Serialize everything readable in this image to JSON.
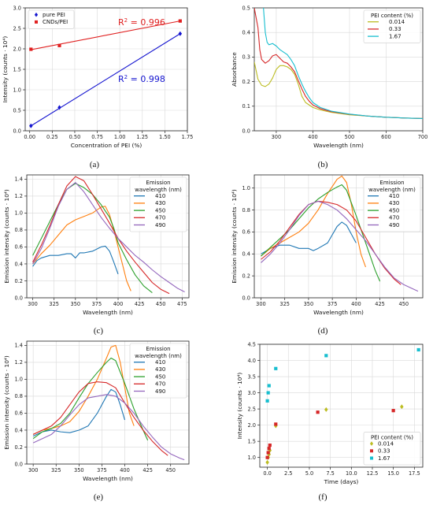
{
  "figure": {
    "panels": [
      {
        "label": "(a)",
        "chart_ref": 0
      },
      {
        "label": "(b)",
        "chart_ref": 1
      },
      {
        "label": "(c)",
        "chart_ref": 2
      },
      {
        "label": "(d)",
        "chart_ref": 3
      },
      {
        "label": "(e)",
        "chart_ref": 4
      },
      {
        "label": "(f)",
        "chart_ref": 5
      }
    ]
  },
  "chart_data": [
    {
      "type": "scatter",
      "xlabel": "Concentration of PEI (%)",
      "ylabel": "Intensity (counts · 10⁴)",
      "xlim": [
        -0.05,
        1.75
      ],
      "ylim": [
        0.0,
        3.0
      ],
      "xticks": [
        "0.00",
        "0.25",
        "0.50",
        "0.75",
        "1.00",
        "1.25",
        "1.50",
        "1.75"
      ],
      "yticks": [
        "0.0",
        "0.5",
        "1.0",
        "1.5",
        "2.0",
        "2.5",
        "3.0"
      ],
      "legend": "top-left",
      "grid": true,
      "series": [
        {
          "name": "pure PEI",
          "marker": "diamond",
          "color": "#1515d0",
          "x": [
            0.014,
            0.33,
            1.67
          ],
          "y": [
            0.12,
            0.57,
            2.37
          ],
          "fit": {
            "x": [
              0.014,
              1.67
            ],
            "y": [
              0.12,
              2.37
            ]
          }
        },
        {
          "name": "CNDs/PEI",
          "marker": "square",
          "color": "#e02020",
          "x": [
            0.014,
            0.33,
            1.67
          ],
          "y": [
            1.99,
            2.08,
            2.68
          ],
          "fit": {
            "x": [
              0.014,
              1.67
            ],
            "y": [
              1.98,
              2.68
            ]
          }
        }
      ],
      "annotations": [
        {
          "text": "R",
          "sup": "2",
          "rest": " = 0.996",
          "color": "#e02020"
        },
        {
          "text": "R",
          "sup": "2",
          "rest": " = 0.998",
          "color": "#1515d0"
        }
      ]
    },
    {
      "type": "line",
      "xlabel": "Wavelength (nm)",
      "ylabel": "Absorbance",
      "xlim": [
        240,
        700
      ],
      "ylim": [
        0.0,
        0.5
      ],
      "xticks": [
        "300",
        "400",
        "500",
        "600",
        "700"
      ],
      "yticks": [
        "0.0",
        "0.1",
        "0.2",
        "0.3",
        "0.4",
        "0.5"
      ],
      "legend_title": "PEI content (%)",
      "legend": "top-right",
      "grid": true,
      "series": [
        {
          "name": "0.014",
          "color": "#bcbd22",
          "x": [
            240,
            250,
            260,
            270,
            280,
            290,
            300,
            310,
            320,
            330,
            340,
            350,
            360,
            370,
            380,
            390,
            400,
            420,
            450,
            500,
            550,
            600,
            650,
            700
          ],
          "y": [
            0.28,
            0.21,
            0.185,
            0.18,
            0.19,
            0.215,
            0.25,
            0.265,
            0.265,
            0.26,
            0.25,
            0.23,
            0.19,
            0.14,
            0.115,
            0.105,
            0.095,
            0.085,
            0.075,
            0.065,
            0.06,
            0.055,
            0.052,
            0.05
          ]
        },
        {
          "name": "0.33",
          "color": "#d62728",
          "x": [
            240,
            250,
            255,
            260,
            270,
            280,
            290,
            300,
            310,
            320,
            330,
            340,
            350,
            360,
            370,
            380,
            390,
            400,
            420,
            450,
            500,
            550,
            600,
            650,
            700
          ],
          "y": [
            0.5,
            0.42,
            0.33,
            0.29,
            0.275,
            0.285,
            0.305,
            0.31,
            0.295,
            0.28,
            0.275,
            0.26,
            0.24,
            0.205,
            0.17,
            0.14,
            0.12,
            0.105,
            0.09,
            0.078,
            0.067,
            0.06,
            0.055,
            0.052,
            0.05
          ]
        },
        {
          "name": "1.67",
          "color": "#17becf",
          "x": [
            265,
            270,
            275,
            280,
            290,
            300,
            310,
            320,
            330,
            340,
            350,
            360,
            370,
            380,
            390,
            400,
            420,
            450,
            500,
            550,
            600,
            650,
            700
          ],
          "y": [
            0.5,
            0.4,
            0.36,
            0.35,
            0.355,
            0.345,
            0.33,
            0.32,
            0.31,
            0.29,
            0.265,
            0.225,
            0.19,
            0.16,
            0.135,
            0.115,
            0.095,
            0.08,
            0.068,
            0.06,
            0.055,
            0.052,
            0.05
          ]
        }
      ]
    },
    {
      "type": "line",
      "xlabel": "Wavelength (nm)",
      "ylabel": "Emission intensity (counts · 10⁴)",
      "xlim": [
        293,
        483
      ],
      "ylim": [
        0.0,
        1.45
      ],
      "xticks": [
        "300",
        "325",
        "350",
        "375",
        "400",
        "425",
        "450",
        "475"
      ],
      "yticks": [
        "0.0",
        "0.2",
        "0.4",
        "0.6",
        "0.8",
        "1.0",
        "1.2",
        "1.4"
      ],
      "legend_title": "Emission\nwavelength (nm)",
      "legend": "top-right",
      "grid": true,
      "series": [
        {
          "name": "410",
          "color": "#1f77b4",
          "x": [
            300,
            305,
            310,
            320,
            330,
            340,
            345,
            350,
            355,
            360,
            370,
            380,
            385,
            390,
            395,
            400
          ],
          "y": [
            0.37,
            0.44,
            0.47,
            0.5,
            0.5,
            0.52,
            0.52,
            0.47,
            0.53,
            0.53,
            0.55,
            0.6,
            0.61,
            0.55,
            0.42,
            0.28
          ]
        },
        {
          "name": "430",
          "color": "#ff7f0e",
          "x": [
            300,
            310,
            320,
            330,
            340,
            350,
            360,
            370,
            380,
            385,
            390,
            395,
            400,
            405,
            410,
            415
          ],
          "y": [
            0.4,
            0.52,
            0.62,
            0.74,
            0.86,
            0.92,
            0.96,
            1.0,
            1.07,
            1.08,
            0.98,
            0.8,
            0.6,
            0.4,
            0.2,
            0.08
          ]
        },
        {
          "name": "450",
          "color": "#2ca02c",
          "x": [
            300,
            310,
            320,
            330,
            340,
            350,
            360,
            370,
            380,
            390,
            395,
            400,
            410,
            420,
            430,
            440
          ],
          "y": [
            0.5,
            0.7,
            0.9,
            1.1,
            1.28,
            1.35,
            1.3,
            1.22,
            1.1,
            0.95,
            0.82,
            0.65,
            0.45,
            0.27,
            0.14,
            0.06
          ]
        },
        {
          "name": "470",
          "color": "#d62728",
          "x": [
            300,
            310,
            320,
            330,
            340,
            350,
            360,
            370,
            380,
            390,
            400,
            410,
            420,
            430,
            440,
            450,
            460
          ],
          "y": [
            0.42,
            0.62,
            0.85,
            1.1,
            1.32,
            1.43,
            1.38,
            1.22,
            1.05,
            0.88,
            0.7,
            0.55,
            0.42,
            0.3,
            0.18,
            0.1,
            0.05
          ]
        },
        {
          "name": "490",
          "color": "#9467bd",
          "x": [
            300,
            310,
            320,
            330,
            340,
            350,
            360,
            370,
            380,
            390,
            400,
            410,
            420,
            430,
            440,
            450,
            460,
            470,
            478
          ],
          "y": [
            0.4,
            0.58,
            0.82,
            1.08,
            1.28,
            1.36,
            1.25,
            1.1,
            0.95,
            0.82,
            0.7,
            0.6,
            0.5,
            0.42,
            0.33,
            0.25,
            0.18,
            0.11,
            0.07
          ]
        }
      ]
    },
    {
      "type": "line",
      "xlabel": "Wavelength (nm)",
      "ylabel": "Emission intensity (counts · 10⁴)",
      "xlim": [
        293,
        470
      ],
      "ylim": [
        0.0,
        1.12
      ],
      "xticks": [
        "300",
        "325",
        "350",
        "375",
        "400",
        "425",
        "450"
      ],
      "yticks": [
        "0.0",
        "0.2",
        "0.4",
        "0.6",
        "0.8",
        "1.0"
      ],
      "legend_title": "Emission\nwavelength (nm)",
      "legend": "top-right",
      "grid": true,
      "series": [
        {
          "name": "410",
          "color": "#1f77b4",
          "x": [
            300,
            310,
            320,
            330,
            340,
            350,
            355,
            360,
            370,
            380,
            385,
            390,
            395,
            400
          ],
          "y": [
            0.4,
            0.45,
            0.48,
            0.48,
            0.45,
            0.45,
            0.43,
            0.45,
            0.5,
            0.65,
            0.69,
            0.66,
            0.58,
            0.5
          ]
        },
        {
          "name": "430",
          "color": "#ff7f0e",
          "x": [
            300,
            310,
            320,
            330,
            340,
            350,
            360,
            370,
            380,
            385,
            390,
            395,
            400,
            405,
            410
          ],
          "y": [
            0.38,
            0.45,
            0.5,
            0.55,
            0.6,
            0.68,
            0.8,
            0.95,
            1.08,
            1.11,
            1.05,
            0.85,
            0.6,
            0.4,
            0.28
          ]
        },
        {
          "name": "450",
          "color": "#2ca02c",
          "x": [
            300,
            310,
            320,
            330,
            340,
            350,
            360,
            370,
            380,
            385,
            390,
            400,
            410,
            420,
            425
          ],
          "y": [
            0.38,
            0.46,
            0.54,
            0.62,
            0.72,
            0.82,
            0.9,
            0.96,
            1.01,
            1.03,
            0.98,
            0.75,
            0.5,
            0.25,
            0.15
          ]
        },
        {
          "name": "470",
          "color": "#d62728",
          "x": [
            300,
            310,
            320,
            330,
            340,
            350,
            360,
            370,
            380,
            390,
            400,
            410,
            420,
            430,
            440,
            447
          ],
          "y": [
            0.35,
            0.42,
            0.52,
            0.64,
            0.76,
            0.85,
            0.88,
            0.87,
            0.85,
            0.8,
            0.7,
            0.55,
            0.4,
            0.27,
            0.17,
            0.12
          ]
        },
        {
          "name": "490",
          "color": "#9467bd",
          "x": [
            300,
            310,
            320,
            330,
            340,
            350,
            360,
            370,
            380,
            390,
            400,
            410,
            420,
            430,
            440,
            450,
            460,
            465
          ],
          "y": [
            0.32,
            0.4,
            0.5,
            0.62,
            0.75,
            0.85,
            0.88,
            0.85,
            0.8,
            0.72,
            0.62,
            0.52,
            0.4,
            0.28,
            0.18,
            0.12,
            0.08,
            0.06
          ]
        }
      ]
    },
    {
      "type": "line",
      "xlabel": "Wavelength (nm)",
      "ylabel": "Emission intensity (counts · 10⁴)",
      "xlim": [
        293,
        470
      ],
      "ylim": [
        0.0,
        1.45
      ],
      "xticks": [
        "300",
        "325",
        "350",
        "375",
        "400",
        "425",
        "450"
      ],
      "yticks": [
        "0.0",
        "0.2",
        "0.4",
        "0.6",
        "0.8",
        "1.0",
        "1.2",
        "1.4"
      ],
      "legend_title": "Emission\nwavelength (nm)",
      "legend": "top-right",
      "grid": true,
      "series": [
        {
          "name": "410",
          "color": "#1f77b4",
          "x": [
            300,
            310,
            320,
            330,
            340,
            350,
            360,
            370,
            380,
            385,
            390,
            395,
            400
          ],
          "y": [
            0.33,
            0.38,
            0.4,
            0.38,
            0.37,
            0.4,
            0.45,
            0.6,
            0.8,
            0.88,
            0.85,
            0.7,
            0.52
          ]
        },
        {
          "name": "430",
          "color": "#ff7f0e",
          "x": [
            300,
            310,
            320,
            330,
            340,
            350,
            360,
            370,
            380,
            385,
            390,
            395,
            400,
            405,
            410
          ],
          "y": [
            0.35,
            0.4,
            0.42,
            0.45,
            0.5,
            0.62,
            0.8,
            1.0,
            1.25,
            1.38,
            1.4,
            1.2,
            0.9,
            0.6,
            0.45
          ]
        },
        {
          "name": "450",
          "color": "#2ca02c",
          "x": [
            300,
            310,
            320,
            330,
            340,
            350,
            360,
            370,
            380,
            385,
            390,
            400,
            410,
            420,
            425
          ],
          "y": [
            0.3,
            0.38,
            0.42,
            0.48,
            0.6,
            0.78,
            0.95,
            1.08,
            1.2,
            1.25,
            1.22,
            0.95,
            0.65,
            0.4,
            0.28
          ]
        },
        {
          "name": "470",
          "color": "#d62728",
          "x": [
            300,
            310,
            320,
            330,
            340,
            350,
            360,
            370,
            380,
            390,
            400,
            410,
            420,
            430,
            440,
            447
          ],
          "y": [
            0.35,
            0.4,
            0.45,
            0.55,
            0.7,
            0.85,
            0.95,
            0.97,
            0.96,
            0.9,
            0.72,
            0.55,
            0.4,
            0.27,
            0.16,
            0.1
          ]
        },
        {
          "name": "490",
          "color": "#9467bd",
          "x": [
            300,
            310,
            320,
            330,
            340,
            350,
            360,
            370,
            380,
            390,
            400,
            410,
            420,
            430,
            440,
            450,
            460,
            465
          ],
          "y": [
            0.25,
            0.3,
            0.35,
            0.45,
            0.58,
            0.7,
            0.78,
            0.8,
            0.82,
            0.8,
            0.72,
            0.6,
            0.45,
            0.32,
            0.2,
            0.12,
            0.07,
            0.05
          ]
        }
      ]
    },
    {
      "type": "scatter",
      "xlabel": "Time (days)",
      "ylabel": "Intensity (counts · 10⁴)",
      "xlim": [
        -0.9,
        18.5
      ],
      "ylim": [
        0.7,
        4.5
      ],
      "xticks": [
        "0.0",
        "2.5",
        "5.0",
        "7.5",
        "10.0",
        "12.5",
        "15.0",
        "17.5"
      ],
      "yticks": [
        "1.0",
        "1.5",
        "2.0",
        "2.5",
        "3.0",
        "3.5",
        "4.0",
        "4.5"
      ],
      "legend_title": "PEI content (%)",
      "legend": "bottom-right",
      "grid": true,
      "series": [
        {
          "name": "0.014",
          "marker": "diamond",
          "color": "#bcbd22",
          "x": [
            0.0,
            0.1,
            0.2,
            0.3,
            1.0,
            7.0,
            16.0
          ],
          "y": [
            0.85,
            1.0,
            1.1,
            1.22,
            1.98,
            2.48,
            2.57
          ]
        },
        {
          "name": "0.33",
          "marker": "square",
          "color": "#d62728",
          "x": [
            0.0,
            0.1,
            0.2,
            0.3,
            1.0,
            6.0,
            15.0
          ],
          "y": [
            1.0,
            1.15,
            1.28,
            1.38,
            2.03,
            2.4,
            2.45
          ]
        },
        {
          "name": "1.67",
          "marker": "square",
          "color": "#17becf",
          "x": [
            0.0,
            0.1,
            0.2,
            1.0,
            7.0,
            18.0
          ],
          "y": [
            2.75,
            3.0,
            3.22,
            3.75,
            4.15,
            4.33
          ]
        }
      ]
    }
  ]
}
